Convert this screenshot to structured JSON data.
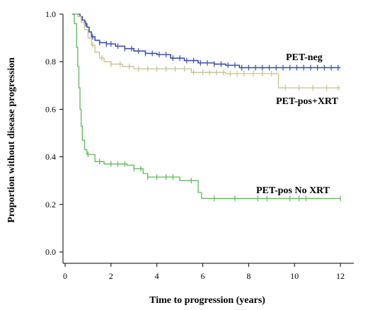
{
  "chart_data": {
    "type": "line",
    "step": true,
    "title": "",
    "xlabel": "Time to progression (years)",
    "ylabel": "Proportion without disease progression",
    "xlim": [
      0,
      12.8
    ],
    "ylim": [
      0,
      1.0
    ],
    "xticks": [
      "0",
      "2",
      "4",
      "6",
      "8",
      "10",
      "12"
    ],
    "yticks": [
      "0.0",
      "0.2",
      "0.4",
      "0.6",
      "0.8",
      "1.0"
    ],
    "grid": false,
    "legend": "none",
    "series": [
      {
        "name": "PET-neg",
        "color": "#3c4fb0",
        "points": [
          [
            0.3,
            1.0
          ],
          [
            0.55,
            1.0
          ],
          [
            0.65,
            0.99
          ],
          [
            0.75,
            0.975
          ],
          [
            0.85,
            0.96
          ],
          [
            0.95,
            0.945
          ],
          [
            1.05,
            0.925
          ],
          [
            1.15,
            0.905
          ],
          [
            1.3,
            0.89
          ],
          [
            1.5,
            0.88
          ],
          [
            1.8,
            0.875
          ],
          [
            2.2,
            0.865
          ],
          [
            2.6,
            0.855
          ],
          [
            3.0,
            0.845
          ],
          [
            3.5,
            0.835
          ],
          [
            4.0,
            0.83
          ],
          [
            4.6,
            0.815
          ],
          [
            5.2,
            0.805
          ],
          [
            5.8,
            0.795
          ],
          [
            6.5,
            0.79
          ],
          [
            7.0,
            0.785
          ],
          [
            7.6,
            0.775
          ],
          [
            9.0,
            0.775
          ],
          [
            12.0,
            0.775
          ]
        ],
        "censor_x": [
          0.9,
          1.2,
          1.5,
          1.8,
          2.0,
          2.3,
          2.6,
          2.9,
          3.2,
          3.5,
          3.8,
          4.1,
          4.4,
          4.7,
          5.0,
          5.3,
          5.6,
          5.9,
          6.2,
          6.5,
          6.8,
          7.1,
          7.4,
          7.7,
          8.0,
          8.3,
          8.6,
          8.9,
          9.2,
          9.5,
          9.8,
          10.1,
          10.4,
          10.7,
          11.0,
          11.3,
          11.6,
          11.9
        ]
      },
      {
        "name": "PET-pos+XRT",
        "color": "#c8c08c",
        "points": [
          [
            0.3,
            1.0
          ],
          [
            0.55,
            0.99
          ],
          [
            0.7,
            0.965
          ],
          [
            0.85,
            0.935
          ],
          [
            1.0,
            0.9
          ],
          [
            1.15,
            0.87
          ],
          [
            1.3,
            0.84
          ],
          [
            1.5,
            0.815
          ],
          [
            1.7,
            0.8
          ],
          [
            2.0,
            0.79
          ],
          [
            2.5,
            0.78
          ],
          [
            3.0,
            0.77
          ],
          [
            4.0,
            0.77
          ],
          [
            5.5,
            0.755
          ],
          [
            7.0,
            0.75
          ],
          [
            9.3,
            0.69
          ],
          [
            12.0,
            0.69
          ]
        ],
        "censor_x": [
          1.2,
          1.6,
          2.0,
          2.4,
          2.8,
          3.2,
          3.6,
          4.0,
          4.4,
          4.8,
          5.2,
          5.6,
          6.0,
          6.3,
          6.6,
          6.9,
          7.2,
          7.5,
          7.8,
          8.2,
          8.6,
          9.0,
          9.6,
          10.2,
          10.8,
          11.4,
          11.9
        ]
      },
      {
        "name": "PET-pos No XRT",
        "color": "#5cb85c",
        "points": [
          [
            0.3,
            1.0
          ],
          [
            0.4,
            0.96
          ],
          [
            0.5,
            0.86
          ],
          [
            0.55,
            0.78
          ],
          [
            0.6,
            0.69
          ],
          [
            0.65,
            0.6
          ],
          [
            0.7,
            0.53
          ],
          [
            0.75,
            0.47
          ],
          [
            0.85,
            0.43
          ],
          [
            0.95,
            0.41
          ],
          [
            1.3,
            0.38
          ],
          [
            1.7,
            0.37
          ],
          [
            2.7,
            0.365
          ],
          [
            3.0,
            0.35
          ],
          [
            3.4,
            0.33
          ],
          [
            3.6,
            0.315
          ],
          [
            5.0,
            0.3
          ],
          [
            5.8,
            0.25
          ],
          [
            5.95,
            0.225
          ],
          [
            12.0,
            0.225
          ]
        ],
        "censor_x": [
          1.0,
          1.5,
          2.0,
          2.3,
          2.6,
          3.0,
          3.3,
          3.6,
          4.0,
          4.4,
          4.7,
          5.5,
          6.5,
          7.4,
          8.4,
          8.8,
          9.8,
          10.2,
          10.5,
          12.0
        ]
      }
    ],
    "annotations": [
      "PET-neg",
      "PET-pos+XRT",
      "PET-pos No XRT"
    ]
  }
}
